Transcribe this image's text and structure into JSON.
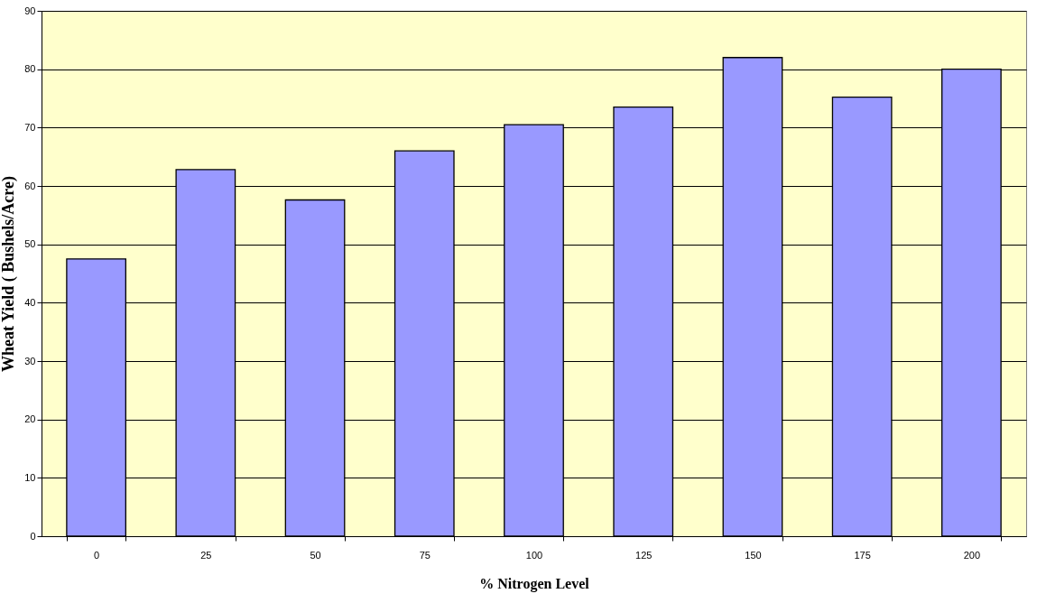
{
  "chart_data": {
    "type": "bar",
    "xlabel": "% Nitrogen Level",
    "ylabel": "Wheat Yield  ( Bushels/Acre)",
    "categories": [
      "0",
      "25",
      "50",
      "75",
      "100",
      "125",
      "150",
      "175",
      "200"
    ],
    "values": [
      47.5,
      62.8,
      57.6,
      66,
      70.5,
      73.5,
      82,
      75.2,
      80
    ],
    "color": "#9999ff",
    "ylim": [
      0,
      90
    ],
    "yticks": [
      0,
      10,
      20,
      30,
      40,
      50,
      60,
      70,
      80,
      90
    ],
    "grid": "y"
  }
}
